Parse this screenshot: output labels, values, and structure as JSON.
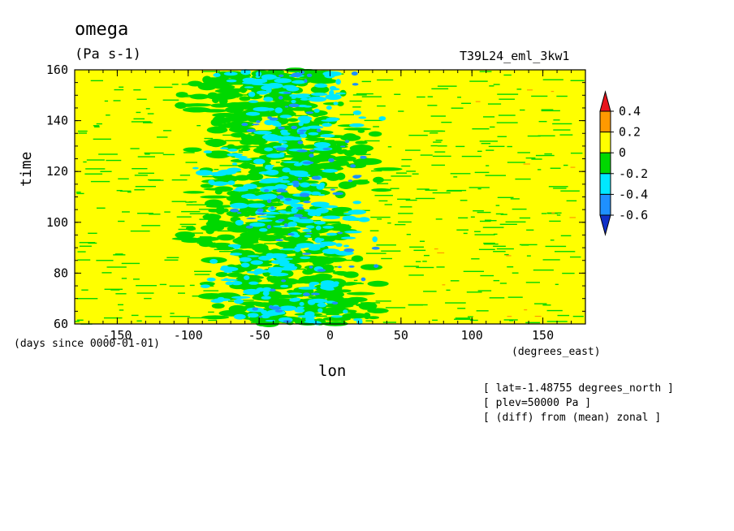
{
  "chart_data": {
    "type": "heatmap",
    "title": "omega",
    "units": "(Pa s-1)",
    "run_label": "T39L24_eml_3kw1",
    "xlabel": "lon",
    "ylabel": "time",
    "x_units": "(degrees_east)",
    "time_units": "(days since 0000-01-01)",
    "xlim": [
      -180,
      180
    ],
    "ylim": [
      60,
      160
    ],
    "x_ticks": [
      -150,
      -100,
      -50,
      0,
      50,
      100,
      150
    ],
    "y_ticks": [
      60,
      80,
      100,
      120,
      140,
      160
    ],
    "levels": [
      -0.6,
      -0.4,
      -0.2,
      0,
      0.2,
      0.4
    ],
    "level_labels": [
      "0.4",
      "0.2",
      "0",
      "-0.2",
      "-0.4",
      "-0.6"
    ],
    "colorbar_colors": [
      "#e8141c",
      "#ff9900",
      "#ffff00",
      "#00d800",
      "#00e8ff",
      "#1e90ff",
      "#1030c8"
    ],
    "notes": [
      "[ lat=-1.48755 degrees_north ]",
      "[ plev=50000 Pa ]",
      "[ (diff) from (mean) zonal ]"
    ],
    "convective_region_lon": [
      -110,
      50
    ],
    "background_value_range": [
      0,
      0.2
    ]
  }
}
